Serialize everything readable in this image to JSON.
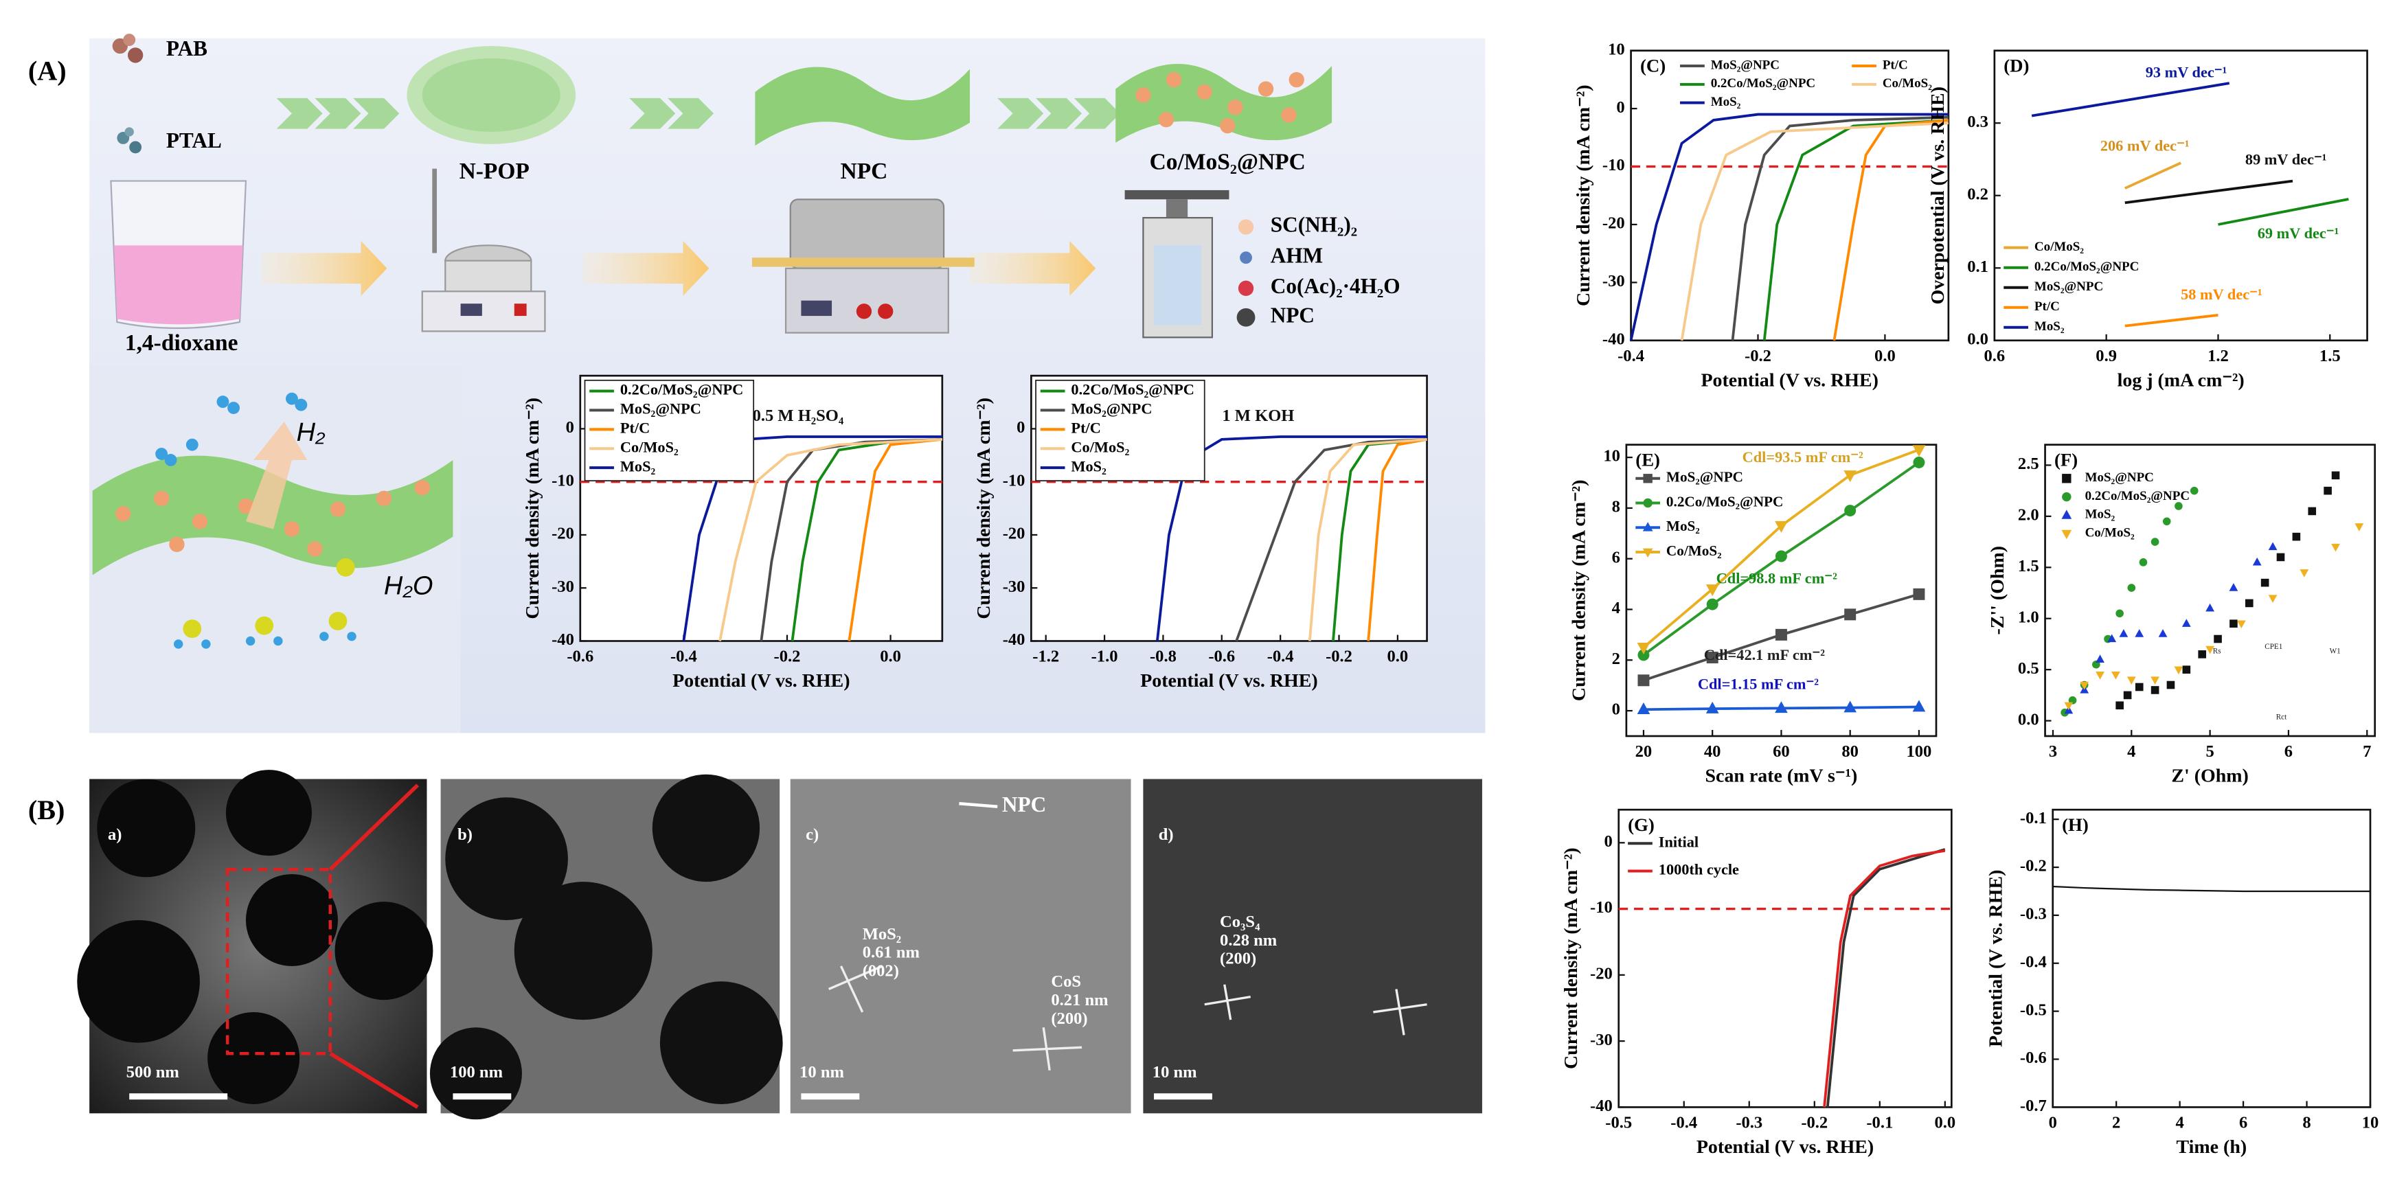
{
  "panels": {
    "A": {
      "label": "(A)",
      "legend_items": [
        "PAB",
        "PTAL"
      ],
      "stages": [
        "N-POP",
        "NPC",
        "Co/MoS₂@NPC"
      ],
      "solvent": "1,4-dioxane",
      "reagents": [
        "SC(NH₂)₂",
        "AHM",
        "Co(Ac)₂·4H₂O",
        "NPC"
      ],
      "h2": "H₂",
      "h2o": "H₂O"
    },
    "B": {
      "label": "(B)",
      "images": [
        {
          "label": "a)",
          "scale": "500 nm"
        },
        {
          "label": "b)",
          "scale": "100 nm"
        },
        {
          "label": "c)",
          "scale": "10 nm",
          "notes": [
            "NPC",
            "MoS₂",
            "0.61 nm",
            "(002)",
            "CoS",
            "0.21 nm",
            "(200)"
          ]
        },
        {
          "label": "d)",
          "scale": "10 nm",
          "notes": [
            "Co₃S₄",
            "0.28 nm",
            "(200)"
          ]
        }
      ]
    }
  },
  "chart_data": [
    {
      "type": "line",
      "xlabel": "Potential (V vs. RHE)",
      "ylabel": "Current density (mA cm⁻²)",
      "xlim": [
        -0.6,
        0.1
      ],
      "xticks": [
        -0.6,
        -0.4,
        -0.2,
        {
          "value": 0,
          "label": "0.0"
        }
      ],
      "ylim": [
        -40,
        10
      ],
      "yticks": [
        0,
        -10,
        -20,
        -30,
        -40
      ],
      "reference_line": -10,
      "legend": "upper left",
      "annotations": [
        {
          "text": "0.5 M H₂SO₄",
          "color": "#111"
        }
      ],
      "series": [
        {
          "name": "0.2Co/MoS₂@NPC",
          "color": "#138a13",
          "x": [
            -0.19,
            -0.17,
            -0.14,
            -0.1,
            0,
            0.1
          ],
          "values": [
            -40,
            -25,
            -10,
            -4,
            -2.5,
            -2
          ]
        },
        {
          "name": "MoS₂@NPC",
          "color": "#4d4d4d",
          "x": [
            -0.25,
            -0.23,
            -0.2,
            -0.15,
            -0.05,
            0.1
          ],
          "values": [
            -40,
            -25,
            -10,
            -4,
            -2.5,
            -2
          ]
        },
        {
          "name": "Pt/C",
          "color": "#ff8a00",
          "x": [
            -0.08,
            -0.05,
            -0.03,
            0,
            0.1
          ],
          "values": [
            -40,
            -20,
            -8,
            -3,
            -2
          ]
        },
        {
          "name": "Co/MoS₂",
          "color": "#f7c98a",
          "x": [
            -0.33,
            -0.3,
            -0.26,
            -0.2,
            -0.1,
            0.1
          ],
          "values": [
            -40,
            -25,
            -10,
            -5,
            -3,
            -2
          ]
        },
        {
          "name": "MoS₂",
          "color": "#0b1a9c",
          "x": [
            -0.4,
            -0.37,
            -0.33,
            -0.28,
            -0.2,
            0.1
          ],
          "values": [
            -40,
            -20,
            -8,
            -2,
            -1.5,
            -1.5
          ]
        }
      ]
    },
    {
      "type": "line",
      "xlabel": "Potential (V vs. RHE)",
      "ylabel": "Current density (mA cm⁻²)",
      "xlim": [
        -1.25,
        0.1
      ],
      "xticks": [
        -1.2,
        {
          "value": -1,
          "label": "-1.0"
        },
        -0.8,
        -0.6,
        -0.4,
        -0.2,
        {
          "value": 0,
          "label": "0.0"
        }
      ],
      "ylim": [
        -40,
        10
      ],
      "yticks": [
        0,
        -10,
        -20,
        -30,
        -40
      ],
      "reference_line": -10,
      "legend": "upper left",
      "annotations": [
        {
          "text": "1 M KOH",
          "color": "#111"
        }
      ],
      "series": [
        {
          "name": "0.2Co/MoS₂@NPC",
          "color": "#138a13",
          "x": [
            -0.22,
            -0.19,
            -0.16,
            -0.1,
            0.1
          ],
          "values": [
            -40,
            -20,
            -8,
            -3,
            -2
          ]
        },
        {
          "name": "MoS₂@NPC",
          "color": "#4d4d4d",
          "x": [
            -0.55,
            -0.45,
            -0.35,
            -0.25,
            -0.1,
            0.1
          ],
          "values": [
            -40,
            -25,
            -10,
            -4,
            -2.5,
            -2
          ]
        },
        {
          "name": "Pt/C",
          "color": "#ff8a00",
          "x": [
            -0.1,
            -0.07,
            -0.05,
            0,
            0.1
          ],
          "values": [
            -40,
            -20,
            -8,
            -3,
            -2
          ]
        },
        {
          "name": "Co/MoS₂",
          "color": "#f7c98a",
          "x": [
            -0.3,
            -0.27,
            -0.23,
            -0.15,
            0.1
          ],
          "values": [
            -40,
            -20,
            -8,
            -3,
            -2
          ]
        },
        {
          "name": "MoS₂",
          "color": "#0b1a9c",
          "x": [
            -0.82,
            -0.78,
            -0.72,
            -0.6,
            -0.4,
            0.1
          ],
          "values": [
            -40,
            -20,
            -6,
            -2,
            -1.5,
            -1.5
          ]
        }
      ]
    },
    {
      "type": "line",
      "label": "(C)",
      "xlabel": "Potential (V vs. RHE)",
      "ylabel": "Current density (mA cm⁻²)",
      "xlim": [
        -0.4,
        0.1
      ],
      "xticks": [
        -0.4,
        -0.2,
        {
          "value": 0,
          "label": "0.0"
        }
      ],
      "ylim": [
        -40,
        10
      ],
      "yticks": [
        10,
        0,
        -10,
        -20,
        -30,
        -40
      ],
      "reference_line": -10,
      "legend": "upper left",
      "annotations": [],
      "series": [
        {
          "name": "MoS₂@NPC",
          "color": "#4d4d4d",
          "x": [
            -0.24,
            -0.22,
            -0.19,
            -0.15,
            -0.05,
            0.1
          ],
          "values": [
            -40,
            -20,
            -8,
            -3,
            -2,
            -1.5
          ]
        },
        {
          "name": "0.2Co/MoS₂@NPC",
          "color": "#138a13",
          "x": [
            -0.19,
            -0.17,
            -0.13,
            -0.05,
            0.1
          ],
          "values": [
            -40,
            -20,
            -8,
            -3,
            -2
          ]
        },
        {
          "name": "MoS₂",
          "color": "#0b1a9c",
          "x": [
            -0.4,
            -0.36,
            -0.32,
            -0.27,
            -0.2,
            0.1
          ],
          "values": [
            -40,
            -20,
            -6,
            -2,
            -1,
            -1
          ]
        },
        {
          "name": "Pt/C",
          "color": "#ff8a00",
          "x": [
            -0.08,
            -0.05,
            -0.03,
            0,
            0.1
          ],
          "values": [
            -40,
            -20,
            -8,
            -3,
            -2
          ]
        },
        {
          "name": "Co/MoS₂",
          "color": "#f7c98a",
          "x": [
            -0.32,
            -0.29,
            -0.25,
            -0.18,
            0,
            0.1
          ],
          "values": [
            -40,
            -20,
            -8,
            -4,
            -3,
            -2.5
          ]
        }
      ]
    },
    {
      "type": "line",
      "label": "(D)",
      "xlabel": "log j (mA cm⁻²)",
      "ylabel": "Overpotential (V vs. RHE)",
      "xlim": [
        0.6,
        1.6
      ],
      "xticks": [
        0.6,
        0.9,
        1.2,
        1.5
      ],
      "ylim": [
        0,
        0.4
      ],
      "yticks": [
        {
          "value": 0,
          "label": "0.0"
        },
        0.1,
        0.2,
        0.3
      ],
      "legend": "lower left",
      "annotations": [
        {
          "text": "93 mV dec⁻¹",
          "color": "#0b1a9c"
        },
        {
          "text": "206 mV dec⁻¹",
          "color": "#d4901a"
        },
        {
          "text": "89 mV dec⁻¹",
          "color": "#111"
        },
        {
          "text": "69 mV dec⁻¹",
          "color": "#138a13"
        },
        {
          "text": "58 mV dec⁻¹",
          "color": "#ff8a00"
        }
      ],
      "series": [
        {
          "name": "Co/MoS₂",
          "color": "#e8a830",
          "x": [
            0.95,
            1.1
          ],
          "values": [
            0.21,
            0.245
          ]
        },
        {
          "name": "0.2Co/MoS₂@NPC",
          "color": "#138a13",
          "x": [
            1.2,
            1.55
          ],
          "values": [
            0.16,
            0.195
          ]
        },
        {
          "name": "MoS₂@NPC",
          "color": "#111",
          "x": [
            0.95,
            1.4
          ],
          "values": [
            0.19,
            0.22
          ]
        },
        {
          "name": "Pt/C",
          "color": "#ff8a00",
          "x": [
            0.95,
            1.2
          ],
          "values": [
            0.02,
            0.035
          ]
        },
        {
          "name": "MoS₂",
          "color": "#0b1a9c",
          "x": [
            0.7,
            1.23
          ],
          "values": [
            0.31,
            0.355
          ]
        }
      ]
    },
    {
      "type": "line",
      "label": "(E)",
      "xlabel": "Scan rate (mV s⁻¹)",
      "ylabel": "Current density (mA cm⁻²)",
      "xlim": [
        15,
        105
      ],
      "xticks": [
        20,
        40,
        60,
        80,
        100
      ],
      "ylim": [
        -1,
        10.5
      ],
      "yticks": [
        0,
        2,
        4,
        6,
        8,
        10
      ],
      "legend": "upper left",
      "x": [
        20,
        40,
        60,
        80,
        100
      ],
      "annotations": [
        {
          "text": "Cdl=93.5 mF cm⁻²",
          "color": "#d4a020"
        },
        {
          "text": "Cdl=98.8 mF cm⁻²",
          "color": "#138a13"
        },
        {
          "text": "Cdl=42.1 mF cm⁻²",
          "color": "#222"
        },
        {
          "text": "Cdl=1.15 mF cm⁻²",
          "color": "#1010c0"
        }
      ],
      "series": [
        {
          "name": "MoS₂@NPC",
          "color": "#4d4d4d",
          "marker": "square",
          "values": [
            1.2,
            2.1,
            3.0,
            3.8,
            4.6
          ]
        },
        {
          "name": "0.2Co/MoS₂@NPC",
          "color": "#2a9a2a",
          "marker": "circle",
          "values": [
            2.2,
            4.2,
            6.1,
            7.9,
            9.8
          ]
        },
        {
          "name": "MoS₂",
          "color": "#1a5ad8",
          "marker": "triangle-up",
          "values": [
            0.05,
            0.08,
            0.1,
            0.12,
            0.15
          ]
        },
        {
          "name": "Co/MoS₂",
          "color": "#e8b020",
          "marker": "triangle-down",
          "values": [
            2.5,
            4.8,
            7.3,
            9.3,
            10.3
          ]
        }
      ]
    },
    {
      "type": "scatter",
      "label": "(F)",
      "xlabel": "Z' (Ohm)",
      "ylabel": "-Z'' (Ohm)",
      "xlim": [
        2.9,
        7.1
      ],
      "xticks": [
        3,
        4,
        5,
        6,
        7
      ],
      "ylim": [
        -0.15,
        2.7
      ],
      "yticks": [
        {
          "value": 0,
          "label": "0.0"
        },
        0.5,
        {
          "value": 1,
          "label": "1.0"
        },
        1.5,
        {
          "value": 2,
          "label": "2.0"
        },
        2.5
      ],
      "legend": "upper left",
      "annotations": [
        {
          "text": "Rs",
          "color": "#222"
        },
        {
          "text": "CPE1",
          "color": "#222"
        },
        {
          "text": "Rct",
          "color": "#222"
        },
        {
          "text": "W1",
          "color": "#222"
        }
      ],
      "series": [
        {
          "name": "MoS₂@NPC",
          "color": "#111",
          "marker": "square",
          "x": [
            3.85,
            3.95,
            4.1,
            4.3,
            4.5,
            4.7,
            4.9,
            5.1,
            5.3,
            5.5,
            5.7,
            5.9,
            6.1,
            6.3,
            6.5,
            6.6
          ],
          "values": [
            0.15,
            0.25,
            0.33,
            0.3,
            0.35,
            0.5,
            0.65,
            0.8,
            0.95,
            1.15,
            1.35,
            1.6,
            1.8,
            2.05,
            2.25,
            2.4
          ]
        },
        {
          "name": "0.2Co/MoS₂@NPC",
          "color": "#2a9a2a",
          "marker": "circle",
          "x": [
            3.15,
            3.25,
            3.4,
            3.55,
            3.7,
            3.85,
            4.0,
            4.15,
            4.3,
            4.45,
            4.6,
            4.8
          ],
          "values": [
            0.08,
            0.2,
            0.35,
            0.55,
            0.8,
            1.05,
            1.3,
            1.55,
            1.75,
            1.95,
            2.1,
            2.25
          ]
        },
        {
          "name": "MoS₂",
          "color": "#1a3ad8",
          "marker": "triangle-up",
          "x": [
            3.2,
            3.4,
            3.6,
            3.75,
            3.9,
            4.1,
            4.4,
            4.7,
            5.0,
            5.3,
            5.6,
            5.8
          ],
          "values": [
            0.1,
            0.3,
            0.6,
            0.8,
            0.85,
            0.85,
            0.85,
            0.95,
            1.1,
            1.3,
            1.55,
            1.7
          ]
        },
        {
          "name": "Co/MoS₂",
          "color": "#f0b020",
          "marker": "triangle-down",
          "x": [
            3.2,
            3.4,
            3.6,
            3.8,
            4.0,
            4.3,
            4.6,
            5.0,
            5.4,
            5.8,
            6.2,
            6.6,
            6.9
          ],
          "values": [
            0.15,
            0.35,
            0.45,
            0.45,
            0.4,
            0.4,
            0.5,
            0.7,
            0.95,
            1.2,
            1.45,
            1.7,
            1.9
          ]
        }
      ]
    },
    {
      "type": "line",
      "label": "(G)",
      "xlabel": "Potential (V vs. RHE)",
      "ylabel": "Current density (mA cm⁻²)",
      "xlim": [
        -0.5,
        0.01
      ],
      "xticks": [
        -0.5,
        -0.4,
        -0.3,
        -0.2,
        -0.1,
        {
          "value": 0,
          "label": "0.0"
        }
      ],
      "ylim": [
        -40,
        5
      ],
      "yticks": [
        0,
        -10,
        -20,
        -30,
        -40
      ],
      "reference_line": -10,
      "legend": "upper left",
      "annotations": [],
      "series": [
        {
          "name": "Initial",
          "color": "#333",
          "x": [
            -0.18,
            -0.17,
            -0.155,
            -0.14,
            -0.1,
            -0.05,
            0
          ],
          "values": [
            -40,
            -30,
            -15,
            -8,
            -4,
            -2.5,
            -1
          ]
        },
        {
          "name": "1000th cycle",
          "color": "#e02020",
          "x": [
            -0.185,
            -0.175,
            -0.16,
            -0.145,
            -0.1,
            -0.05,
            0
          ],
          "values": [
            -40,
            -30,
            -15,
            -8,
            -3.5,
            -2,
            -1.2
          ]
        }
      ]
    },
    {
      "type": "line",
      "label": "(H)",
      "xlabel": "Time (h)",
      "ylabel": "Potential (V vs. RHE)",
      "xlim": [
        0,
        10
      ],
      "xticks": [
        0,
        2,
        4,
        6,
        8,
        10
      ],
      "ylim": [
        -0.7,
        -0.08
      ],
      "yticks": [
        -0.1,
        -0.2,
        -0.3,
        -0.4,
        -0.5,
        -0.6,
        -0.7
      ],
      "annotations": [],
      "series": [
        {
          "color": "#111",
          "x": [
            0,
            1,
            2,
            3,
            4,
            5,
            6,
            7,
            8,
            9,
            10
          ],
          "values": [
            -0.24,
            -0.243,
            -0.245,
            -0.247,
            -0.248,
            -0.249,
            -0.25,
            -0.25,
            -0.25,
            -0.25,
            -0.25
          ]
        }
      ]
    }
  ]
}
